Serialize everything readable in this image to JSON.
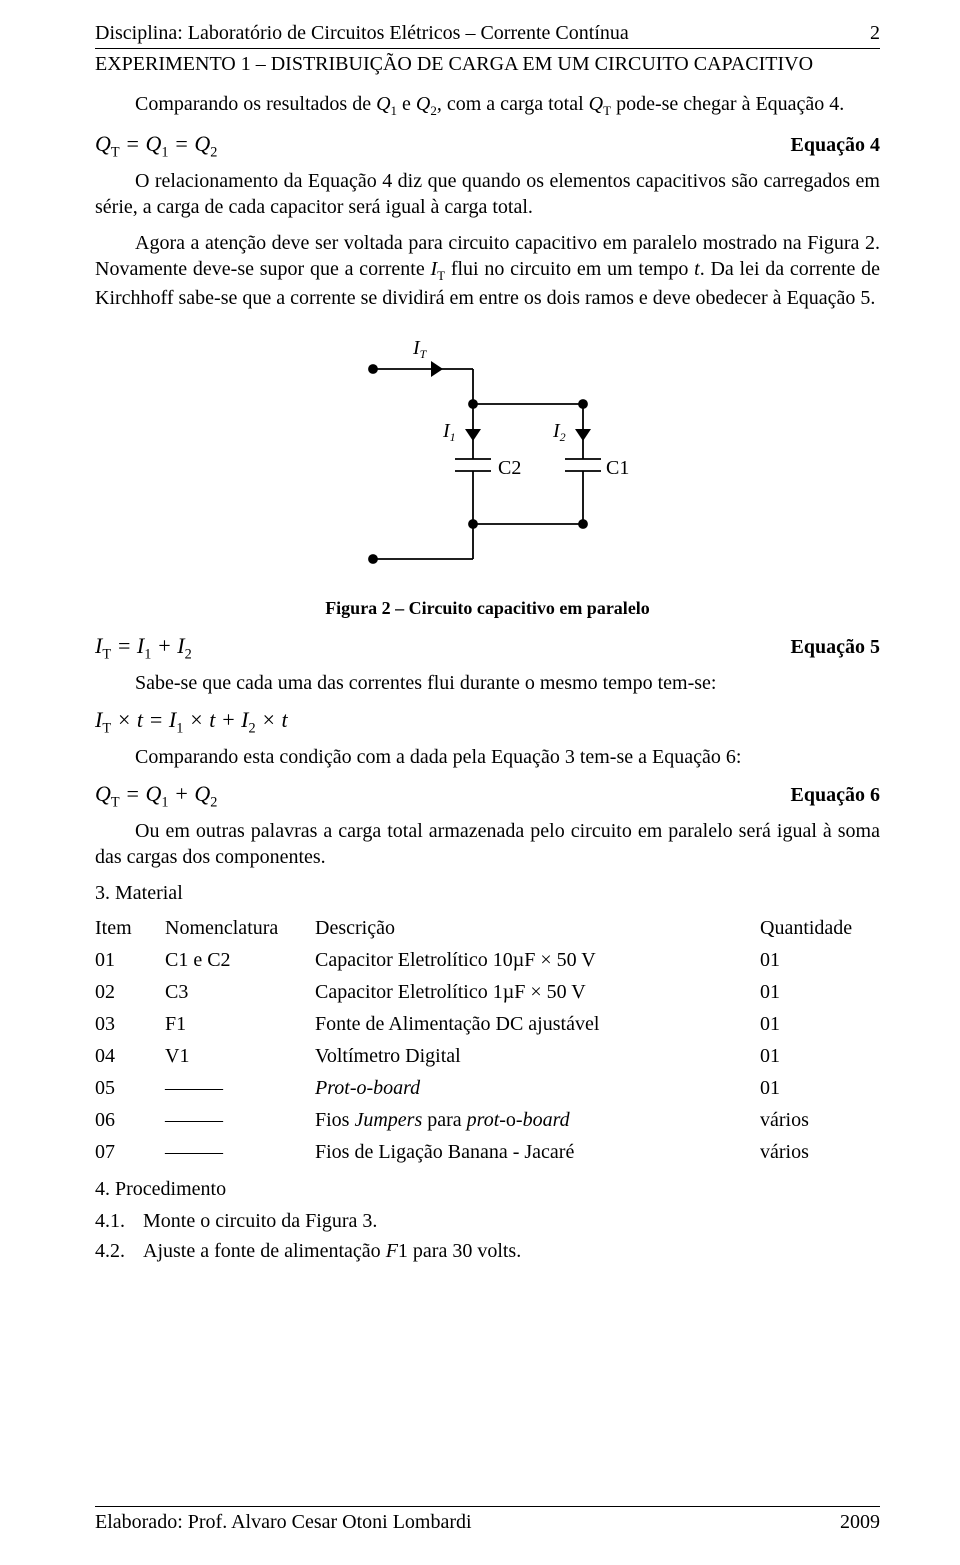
{
  "header": {
    "course": "Disciplina: Laboratório de Circuitos Elétricos – Corrente Contínua",
    "page_number": "2",
    "experiment": "EXPERIMENTO 1 – DISTRIBUIÇÃO DE CARGA EM UM CIRCUITO CAPACITIVO"
  },
  "body": {
    "p1": "Comparando os resultados de Q₁ e Q₂, com a carga total Qᴛ pode-se chegar à Equação 4.",
    "eq4_lhs": "Qᴛ = Q₁ = Q₂",
    "eq4_label": "Equação 4",
    "p2": "O relacionamento da Equação 4 diz que quando os elementos capacitivos são carregados em série, a carga de cada capacitor será igual à carga total.",
    "p3": "Agora a atenção deve ser voltada para circuito capacitivo em paralelo mostrado na Figura 2. Novamente deve-se supor que a corrente Iᴛ flui no circuito em um tempo t. Da lei da corrente de Kirchhoff sabe-se que a corrente se dividirá em entre os dois ramos e deve obedecer à Equação 5.",
    "figcaption": "Figura 2 – Circuito capacitivo em paralelo",
    "eq5_lhs": "Iᴛ = I₁ + I₂",
    "eq5_label": "Equação 5",
    "p4": "Sabe-se que cada uma das correntes flui durante o mesmo tempo tem-se:",
    "eq_time": "Iᴛ × t = I₁ × t + I₂ × t",
    "p5": "Comparando esta condição com a dada pela Equação 3 tem-se a Equação 6:",
    "eq6_lhs": "Qᴛ = Q₁ + Q₂",
    "eq6_label": "Equação 6",
    "p6": "Ou em outras palavras a carga total armazenada pelo circuito em paralelo será igual à soma das cargas dos componentes.",
    "section_material": "3.  Material",
    "material_headers": [
      "Item",
      "Nomenclatura",
      "Descrição",
      "Quantidade"
    ],
    "materials": [
      {
        "item": "01",
        "nom": "C1 e C2",
        "desc": "Capacitor Eletrolítico 10µF × 50 V",
        "qty": "01"
      },
      {
        "item": "02",
        "nom": "C3",
        "desc": "Capacitor Eletrolítico 1µF × 50 V",
        "qty": "01"
      },
      {
        "item": "03",
        "nom": "F1",
        "desc": "Fonte de Alimentação DC ajustável",
        "qty": "01"
      },
      {
        "item": "04",
        "nom": "V1",
        "desc": "Voltímetro Digital",
        "qty": "01"
      },
      {
        "item": "05",
        "nom": "—",
        "desc": "Prot-o-board",
        "qty": "01",
        "desc_italic": true,
        "nom_dash": true
      },
      {
        "item": "06",
        "nom": "—",
        "desc": "Fios Jumpers para prot-o-board",
        "qty": "vários",
        "nom_dash": true
      },
      {
        "item": "07",
        "nom": "—",
        "desc": "Fios de Ligação Banana - Jacaré",
        "qty": "vários",
        "nom_dash": true
      }
    ],
    "section_proc": "4.  Procedimento",
    "proc": [
      {
        "num": "4.1.",
        "text": "Monte o circuito da Figura 3."
      },
      {
        "num": "4.2.",
        "text": "Ajuste a fonte de alimentação F1 para 30 volts."
      }
    ]
  },
  "figure": {
    "type": "circuit-diagram",
    "stroke": "#000000",
    "stroke_width": 1.8,
    "node_radius": 4,
    "labels": {
      "IT": "Iᴛ",
      "I1": "I₁",
      "I2": "I₂",
      "C1": "C1",
      "C2": "C2"
    },
    "arrow": "path"
  },
  "footer": {
    "author": "Elaborado: Prof. Alvaro Cesar Otoni Lombardi",
    "year": "2009"
  }
}
